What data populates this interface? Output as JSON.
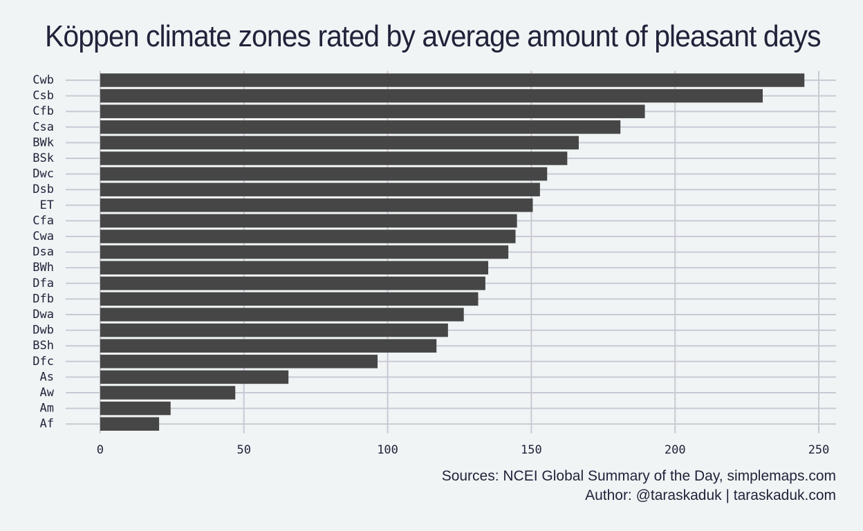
{
  "chart_data": {
    "type": "bar",
    "orientation": "horizontal",
    "title": "Köppen climate zones rated by average amount of pleasant days",
    "xlabel": "",
    "ylabel": "",
    "categories": [
      "Cwb",
      "Csb",
      "Cfb",
      "Csa",
      "BWk",
      "BSk",
      "Dwc",
      "Dsb",
      "ET",
      "Cfa",
      "Cwa",
      "Dsa",
      "BWh",
      "Dfa",
      "Dfb",
      "Dwa",
      "Dwb",
      "BSh",
      "Dfc",
      "As",
      "Aw",
      "Am",
      "Af"
    ],
    "values": [
      245,
      230.5,
      189.5,
      181,
      166.5,
      162.5,
      155.5,
      153,
      150.5,
      145,
      144.5,
      142,
      135,
      134,
      131.5,
      126.5,
      121,
      117,
      96.5,
      65.5,
      47,
      24.5,
      20.5
    ],
    "xlim": [
      -12,
      256
    ],
    "xticks": [
      0,
      50,
      100,
      150,
      200,
      250
    ],
    "grid": true,
    "bar_color": "#464646",
    "grid_color": "#c9c9d4",
    "background": "#f1f4f5",
    "captions": {
      "source": "Sources: NCEI Global Summary of the Day, simplemaps.com",
      "author": "Author: @taraskaduk | taraskaduk.com"
    }
  }
}
